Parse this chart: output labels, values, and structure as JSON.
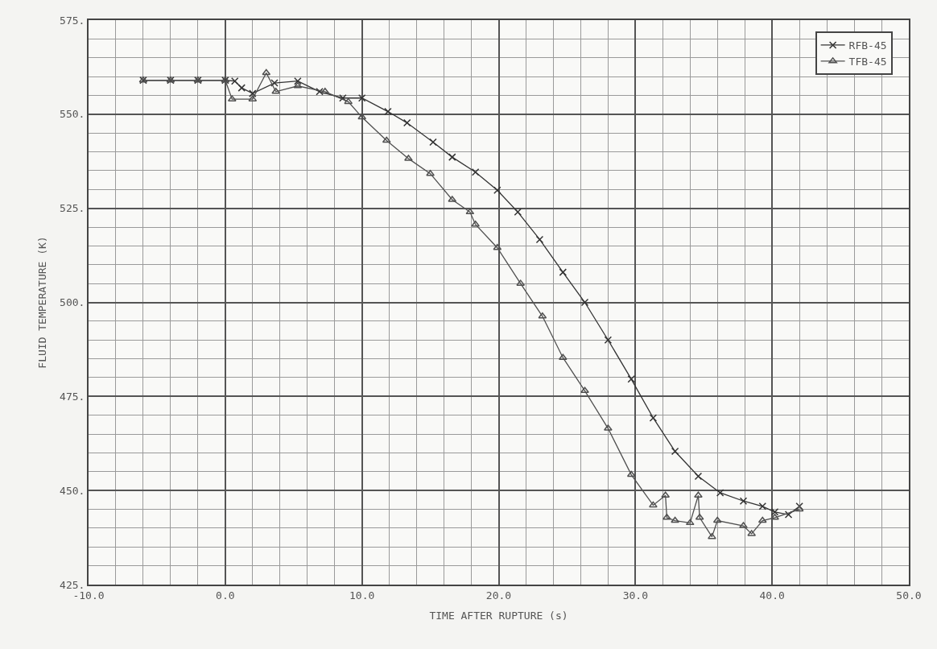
{
  "chart_data": {
    "type": "line",
    "xlabel": "TIME AFTER RUPTURE (s)",
    "ylabel": "FLUID TEMPERATURE (K)",
    "xlim": [
      -10,
      50
    ],
    "ylim": [
      425,
      575
    ],
    "xticks": [
      {
        "value": -10,
        "label": "-10.0"
      },
      {
        "value": 0,
        "label": "0.0"
      },
      {
        "value": 10,
        "label": "10.0"
      },
      {
        "value": 20,
        "label": "20.0"
      },
      {
        "value": 30,
        "label": "30.0"
      },
      {
        "value": 40,
        "label": "40.0"
      },
      {
        "value": 50,
        "label": "50.0"
      }
    ],
    "yticks": [
      {
        "value": 425,
        "label": "425."
      },
      {
        "value": 450,
        "label": "450."
      },
      {
        "value": 475,
        "label": "475."
      },
      {
        "value": 500,
        "label": "500."
      },
      {
        "value": 525,
        "label": "525."
      },
      {
        "value": 550,
        "label": "550."
      },
      {
        "value": 575,
        "label": "575."
      }
    ],
    "grid": true,
    "legend": "top right",
    "line_style": "solid",
    "series": [
      {
        "name": "RFB-45",
        "color": "#333333",
        "marker": "cross",
        "x": [
          -6,
          -4,
          -2,
          0,
          0.7,
          1.2,
          2,
          3.6,
          5.3,
          6.9,
          8.6,
          10,
          11.9,
          13.3,
          15.2,
          16.6,
          18.3,
          19.9,
          21.4,
          23,
          24.7,
          26.3,
          28,
          29.7,
          31.3,
          32.9,
          34.6,
          36.2,
          37.9,
          39.3,
          40.2,
          41.2,
          42
        ],
        "values": [
          559,
          559,
          559,
          559,
          558.8,
          557,
          555.5,
          558.3,
          558.8,
          556,
          554.3,
          554.3,
          550.7,
          547.7,
          542.6,
          538.6,
          534.6,
          529.8,
          524,
          516.7,
          508,
          500,
          490,
          479.6,
          469.3,
          460.4,
          453.8,
          449.4,
          447.2,
          445.8,
          444.3,
          443.6,
          445.8
        ]
      },
      {
        "name": "TFB-45",
        "color": "#505050",
        "marker": "triangle",
        "x": [
          -6,
          -4,
          -2,
          0,
          0.5,
          2,
          3,
          3.7,
          5.3,
          7.3,
          9,
          10,
          11.8,
          13.4,
          15,
          16.6,
          17.9,
          18.3,
          19.9,
          21.6,
          23.2,
          24.7,
          26.3,
          28,
          29.7,
          31.3,
          32.2,
          32.3,
          32.9,
          34,
          34.6,
          34.7,
          35.6,
          36,
          37.9,
          38.5,
          39.3,
          40.2,
          42
        ],
        "values": [
          559,
          559,
          559,
          559,
          554,
          554,
          561,
          556,
          557.5,
          556,
          553.3,
          549.2,
          543,
          538.2,
          534.2,
          527.3,
          524,
          520.7,
          514.5,
          505,
          496.3,
          485.3,
          476.5,
          466.5,
          454.2,
          446.1,
          448.7,
          442.8,
          442,
          441.4,
          448.7,
          442.8,
          437.7,
          442,
          440.6,
          438.5,
          442,
          442.8,
          445
        ]
      }
    ]
  }
}
